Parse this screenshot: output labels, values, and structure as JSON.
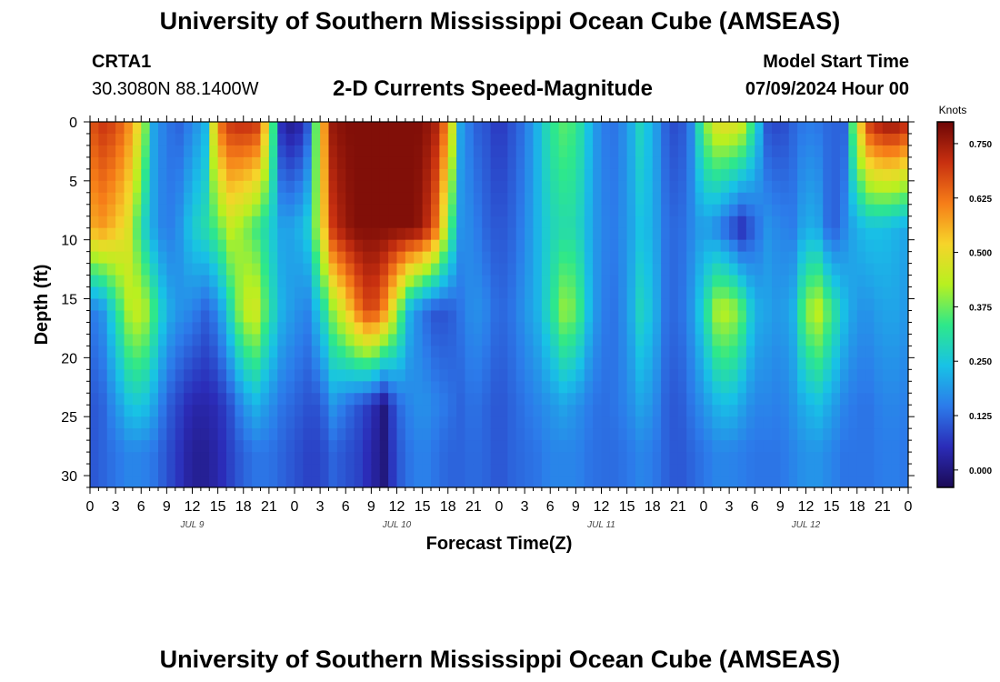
{
  "header": {
    "title": "University of Southern Mississippi Ocean Cube (AMSEAS)",
    "station_id": "CRTA1",
    "station_coords": "30.3080N  88.1400W",
    "plot_title": "2-D Currents Speed-Magnitude",
    "model_start_label": "Model Start Time",
    "model_start_value": "07/09/2024 Hour 00"
  },
  "footer": {
    "title": "University of Southern Mississippi Ocean Cube (AMSEAS)"
  },
  "chart_data": {
    "type": "heatmap",
    "title": "2-D Currents Speed-Magnitude",
    "xlabel": "Forecast Time(Z)",
    "ylabel": "Depth (ft)",
    "xlim_hours": [
      0,
      96
    ],
    "ylim_ft": [
      0,
      31
    ],
    "x_tick_labels": [
      "0",
      "3",
      "6",
      "9",
      "12",
      "15",
      "18",
      "21",
      "0",
      "3",
      "6",
      "9",
      "12",
      "15",
      "18",
      "21",
      "0",
      "3",
      "6",
      "9",
      "12",
      "15",
      "18",
      "21",
      "0",
      "3",
      "6",
      "9",
      "12",
      "15",
      "18",
      "21",
      "0"
    ],
    "y_ticks": [
      0,
      5,
      10,
      15,
      20,
      25,
      30
    ],
    "day_labels": [
      {
        "label": "JUL 9",
        "hour": 12
      },
      {
        "label": "JUL 10",
        "hour": 36
      },
      {
        "label": "JUL 11",
        "hour": 60
      },
      {
        "label": "JUL 12",
        "hour": 84
      }
    ],
    "colorbar": {
      "units": "Knots",
      "min": -0.04,
      "max": 0.8,
      "ticks": [
        0.0,
        0.125,
        0.25,
        0.375,
        0.5,
        0.625,
        0.75
      ],
      "tick_labels": [
        "0.000",
        "0.125",
        "0.250",
        "0.375",
        "0.500",
        "0.625",
        "0.750"
      ],
      "colors": [
        "#1b0a55",
        "#2b2cb8",
        "#2c7bea",
        "#18c2e6",
        "#2ee88a",
        "#b8f020",
        "#f6d42a",
        "#f67d18",
        "#c83010",
        "#6e0606"
      ]
    },
    "depth_bands_ft": [
      0,
      9,
      16,
      24,
      28,
      31
    ],
    "time_hours": [
      0,
      1.5,
      3,
      4.5,
      6,
      7.5,
      9,
      10.5,
      12,
      13.5,
      15,
      16.5,
      18,
      19.5,
      21,
      22.5,
      24,
      25.5,
      27,
      28.5,
      30,
      31.5,
      33,
      34.5,
      36,
      37.5,
      39,
      40.5,
      42,
      43.5,
      45,
      46.5,
      48,
      49.5,
      51,
      52.5,
      54,
      55.5,
      57,
      58.5,
      60,
      61.5,
      63,
      64.5,
      66,
      67.5,
      69,
      70.5,
      72,
      73.5,
      75,
      76.5,
      78,
      79.5,
      81,
      82.5,
      84,
      85.5,
      87,
      88.5,
      90,
      91.5,
      93,
      94.5,
      96
    ],
    "speed_knots": [
      [
        0.66,
        0.7,
        0.68,
        0.6,
        0.48,
        0.2,
        0.14,
        0.12,
        0.16,
        0.22,
        0.62,
        0.7,
        0.72,
        0.7,
        0.48,
        0.05,
        0.0,
        0.1,
        0.5,
        0.76,
        0.78,
        0.78,
        0.78,
        0.78,
        0.78,
        0.78,
        0.78,
        0.74,
        0.6,
        0.2,
        0.12,
        0.1,
        0.06,
        0.1,
        0.14,
        0.22,
        0.32,
        0.36,
        0.34,
        0.24,
        0.15,
        0.14,
        0.18,
        0.28,
        0.22,
        0.12,
        0.08,
        0.16,
        0.38,
        0.48,
        0.5,
        0.46,
        0.3,
        0.1,
        0.08,
        0.12,
        0.15,
        0.14,
        0.12,
        0.12,
        0.48,
        0.7,
        0.76,
        0.76,
        0.72
      ],
      [
        0.56,
        0.58,
        0.54,
        0.48,
        0.3,
        0.2,
        0.14,
        0.18,
        0.26,
        0.3,
        0.36,
        0.44,
        0.4,
        0.34,
        0.28,
        0.2,
        0.2,
        0.26,
        0.46,
        0.7,
        0.76,
        0.78,
        0.78,
        0.78,
        0.78,
        0.78,
        0.76,
        0.64,
        0.4,
        0.18,
        0.16,
        0.12,
        0.1,
        0.12,
        0.16,
        0.22,
        0.28,
        0.3,
        0.3,
        0.22,
        0.16,
        0.15,
        0.18,
        0.24,
        0.22,
        0.14,
        0.12,
        0.16,
        0.2,
        0.16,
        0.1,
        0.05,
        0.12,
        0.18,
        0.16,
        0.15,
        0.22,
        0.2,
        0.1,
        0.16,
        0.22,
        0.24,
        0.24,
        0.22,
        0.2
      ],
      [
        0.14,
        0.18,
        0.3,
        0.42,
        0.46,
        0.34,
        0.22,
        0.18,
        0.16,
        0.12,
        0.16,
        0.3,
        0.44,
        0.46,
        0.32,
        0.22,
        0.18,
        0.16,
        0.26,
        0.4,
        0.5,
        0.62,
        0.7,
        0.6,
        0.42,
        0.22,
        0.14,
        0.1,
        0.1,
        0.14,
        0.18,
        0.16,
        0.12,
        0.14,
        0.18,
        0.22,
        0.3,
        0.4,
        0.38,
        0.24,
        0.15,
        0.14,
        0.18,
        0.28,
        0.24,
        0.14,
        0.12,
        0.18,
        0.28,
        0.42,
        0.44,
        0.36,
        0.22,
        0.2,
        0.18,
        0.22,
        0.4,
        0.44,
        0.34,
        0.24,
        0.18,
        0.18,
        0.2,
        0.2,
        0.18
      ],
      [
        0.1,
        0.12,
        0.18,
        0.24,
        0.26,
        0.2,
        0.12,
        0.08,
        0.04,
        0.04,
        0.05,
        0.1,
        0.18,
        0.22,
        0.18,
        0.14,
        0.12,
        0.1,
        0.1,
        0.18,
        0.14,
        0.1,
        0.06,
        0.0,
        0.12,
        0.16,
        0.18,
        0.16,
        0.14,
        0.12,
        0.14,
        0.12,
        0.1,
        0.12,
        0.14,
        0.16,
        0.18,
        0.2,
        0.18,
        0.15,
        0.13,
        0.14,
        0.16,
        0.2,
        0.18,
        0.12,
        0.1,
        0.14,
        0.18,
        0.22,
        0.24,
        0.2,
        0.16,
        0.16,
        0.15,
        0.18,
        0.22,
        0.24,
        0.2,
        0.16,
        0.14,
        0.14,
        0.16,
        0.16,
        0.15
      ],
      [
        0.1,
        0.12,
        0.14,
        0.16,
        0.16,
        0.14,
        0.1,
        0.06,
        0.02,
        0.02,
        0.04,
        0.08,
        0.12,
        0.14,
        0.14,
        0.12,
        0.1,
        0.08,
        0.08,
        0.12,
        0.1,
        0.08,
        0.04,
        0.0,
        0.1,
        0.14,
        0.16,
        0.14,
        0.12,
        0.12,
        0.13,
        0.12,
        0.1,
        0.12,
        0.13,
        0.14,
        0.16,
        0.16,
        0.16,
        0.14,
        0.13,
        0.13,
        0.14,
        0.16,
        0.15,
        0.12,
        0.1,
        0.12,
        0.14,
        0.16,
        0.16,
        0.15,
        0.14,
        0.14,
        0.14,
        0.16,
        0.18,
        0.18,
        0.16,
        0.14,
        0.14,
        0.14,
        0.15,
        0.15,
        0.14
      ]
    ]
  }
}
